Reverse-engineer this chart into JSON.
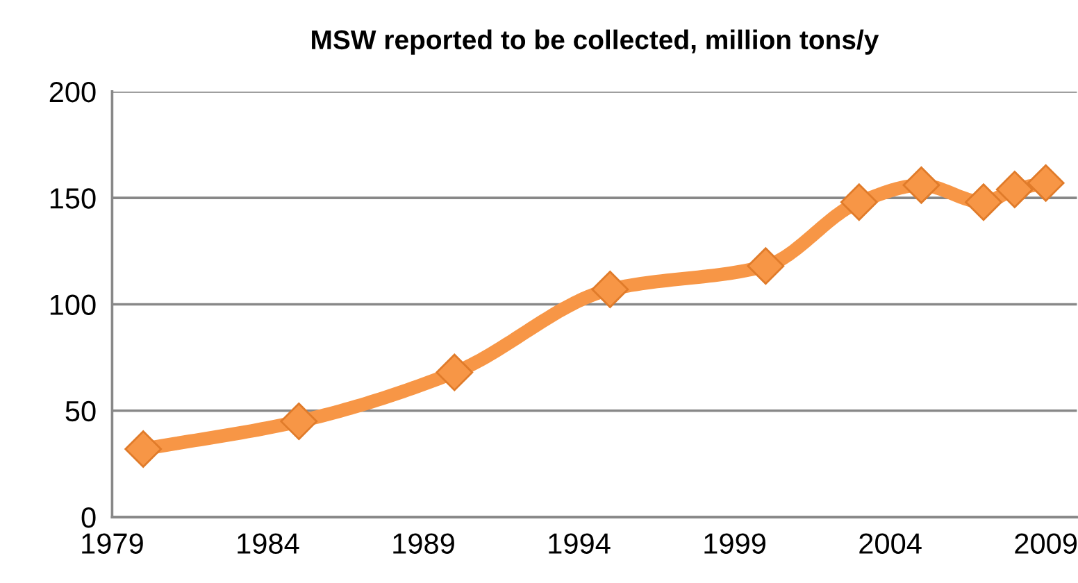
{
  "chart_data": {
    "type": "line",
    "title": "MSW reported to be collected, million tons/y",
    "x": [
      1980,
      1985,
      1990,
      1995,
      2000,
      2003,
      2005,
      2007,
      2008,
      2009
    ],
    "series": [
      {
        "color": "#f79646",
        "values": [
          32,
          45,
          68,
          107,
          118,
          148,
          156,
          148,
          154,
          157
        ]
      }
    ],
    "xlim": [
      1979,
      2010
    ],
    "xticks": [
      1979,
      1984,
      1989,
      1994,
      1999,
      2004,
      2009
    ],
    "ylim": [
      0,
      200
    ],
    "yticks": [
      0,
      50,
      100,
      150,
      200
    ],
    "grid": "y",
    "marker": "diamond",
    "line_style": "solid",
    "legend": false
  }
}
